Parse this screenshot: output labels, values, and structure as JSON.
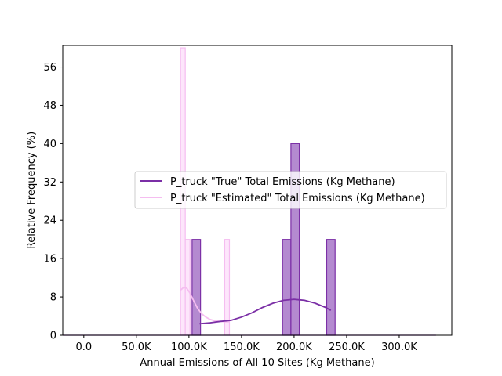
{
  "chart_data": {
    "type": "histogram",
    "xlabel": "Annual Emissions of All 10 Sites (Kg Methane)",
    "ylabel": "Relative Frequency (%)",
    "xlim": [
      -20000,
      350000
    ],
    "ylim": [
      0,
      60.5
    ],
    "x_ticks": [
      0,
      50000,
      100000,
      150000,
      200000,
      250000,
      300000
    ],
    "x_tick_labels": [
      "0.0",
      "50.0K",
      "100.0K",
      "150.0K",
      "200.0K",
      "250.0K",
      "300.0K"
    ],
    "y_ticks": [
      0,
      8,
      16,
      24,
      32,
      40,
      48,
      56
    ],
    "y_tick_labels": [
      "0",
      "8",
      "16",
      "24",
      "32",
      "40",
      "48",
      "56"
    ],
    "grid": false,
    "legend_position": "center-right",
    "series": [
      {
        "name": "P_truck \"True\" Total Emissions (Kg Methane)",
        "color": "#7b2fa6",
        "fill": "#b48ad0",
        "bins": [
          {
            "x0": 103000,
            "x1": 111000,
            "value": 20
          },
          {
            "x0": 189000,
            "x1": 197000,
            "value": 20
          },
          {
            "x0": 197000,
            "x1": 205000,
            "value": 40
          },
          {
            "x0": 231000,
            "x1": 239000,
            "value": 20
          }
        ],
        "kde": {
          "x": [
            110000,
            120000,
            130000,
            140000,
            150000,
            160000,
            170000,
            180000,
            190000,
            200000,
            210000,
            220000,
            230000,
            235000
          ],
          "y": [
            2.4,
            2.6,
            2.9,
            3.1,
            3.8,
            4.7,
            5.8,
            6.7,
            7.3,
            7.5,
            7.3,
            6.7,
            5.8,
            5.2
          ]
        }
      },
      {
        "name": "P_truck \"Estimated\" Total Emissions (Kg Methane)",
        "color": "#f5bdf0",
        "fill": "#fde6fb",
        "bins": [
          {
            "x0": 92000,
            "x1": 96500,
            "value": 60
          },
          {
            "x0": 96500,
            "x1": 101000,
            "value": 20
          },
          {
            "x0": 134000,
            "x1": 138500,
            "value": 20
          }
        ],
        "kde": {
          "x": [
            92000,
            95000,
            98000,
            101000,
            104000,
            108000,
            112000,
            116000,
            120000,
            125000,
            130000,
            135000,
            138000
          ],
          "y": [
            9.4,
            10.0,
            9.8,
            8.8,
            7.4,
            5.7,
            4.5,
            3.8,
            3.3,
            3.0,
            2.9,
            2.8,
            2.8
          ]
        }
      }
    ],
    "baseline": {
      "x0": -20000,
      "x1": 335000,
      "color": "#7b2fa6"
    }
  }
}
